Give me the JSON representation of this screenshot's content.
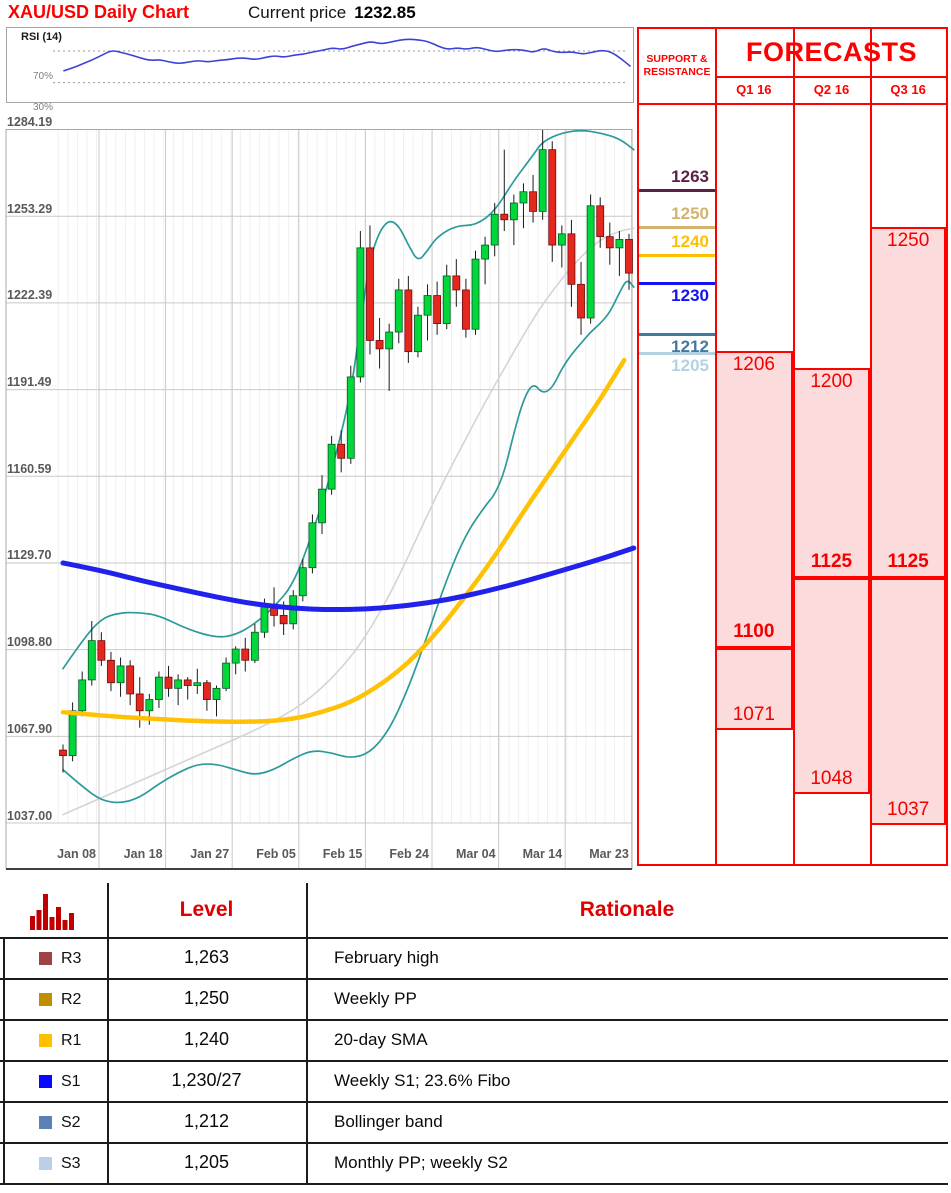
{
  "header": {
    "title": "XAU/USD Daily Chart",
    "price_label": "Current price",
    "price_value": "1232.85"
  },
  "chart_data": {
    "type": "candlestick",
    "title": "XAU/USD Daily Chart",
    "up_color": "#00D73A",
    "down_color": "#E4281E",
    "grid": true,
    "y_axis": {
      "top": 1284.19,
      "bottom": 1037.0,
      "labels": [
        "1284.19",
        "1253.29",
        "1222.39",
        "1191.49",
        "1160.59",
        "1129.70",
        "1098.80",
        "1067.90",
        "1037.00"
      ]
    },
    "x_axis": {
      "labels": [
        "Jan 08",
        "Jan 18",
        "Jan 27",
        "Feb 05",
        "Feb 15",
        "Feb 24",
        "Mar 04",
        "Mar 14",
        "Mar 23"
      ]
    },
    "candles": [
      [
        1063,
        1065,
        1055,
        1061
      ],
      [
        1061,
        1080,
        1059,
        1077
      ],
      [
        1077,
        1091,
        1075,
        1088
      ],
      [
        1088,
        1109,
        1086,
        1102
      ],
      [
        1102,
        1105,
        1093,
        1095
      ],
      [
        1095,
        1098,
        1084,
        1087
      ],
      [
        1087,
        1096,
        1082,
        1093
      ],
      [
        1093,
        1095,
        1079,
        1083
      ],
      [
        1083,
        1089,
        1071,
        1077
      ],
      [
        1077,
        1083,
        1072,
        1081
      ],
      [
        1081,
        1091,
        1078,
        1089
      ],
      [
        1089,
        1093,
        1082,
        1085
      ],
      [
        1085,
        1090,
        1079,
        1088
      ],
      [
        1088,
        1089,
        1081,
        1086
      ],
      [
        1086,
        1092,
        1083,
        1087
      ],
      [
        1087,
        1088,
        1077,
        1081
      ],
      [
        1081,
        1086,
        1075,
        1085
      ],
      [
        1085,
        1096,
        1084,
        1094
      ],
      [
        1094,
        1100,
        1090,
        1099
      ],
      [
        1099,
        1103,
        1091,
        1095
      ],
      [
        1095,
        1108,
        1094,
        1105
      ],
      [
        1105,
        1117,
        1103,
        1115
      ],
      [
        1115,
        1121,
        1107,
        1111
      ],
      [
        1111,
        1116,
        1104,
        1108
      ],
      [
        1108,
        1120,
        1106,
        1118
      ],
      [
        1118,
        1131,
        1116,
        1128
      ],
      [
        1128,
        1147,
        1126,
        1144
      ],
      [
        1144,
        1161,
        1140,
        1156
      ],
      [
        1156,
        1175,
        1154,
        1172
      ],
      [
        1172,
        1177,
        1162,
        1167
      ],
      [
        1167,
        1200,
        1165,
        1196
      ],
      [
        1196,
        1248,
        1194,
        1242
      ],
      [
        1242,
        1250,
        1204,
        1209
      ],
      [
        1209,
        1217,
        1199,
        1206
      ],
      [
        1206,
        1215,
        1191,
        1212
      ],
      [
        1212,
        1231,
        1208,
        1227
      ],
      [
        1227,
        1232,
        1201,
        1205
      ],
      [
        1205,
        1221,
        1203,
        1218
      ],
      [
        1218,
        1229,
        1209,
        1225
      ],
      [
        1225,
        1230,
        1211,
        1215
      ],
      [
        1215,
        1236,
        1213,
        1232
      ],
      [
        1232,
        1238,
        1221,
        1227
      ],
      [
        1227,
        1231,
        1210,
        1213
      ],
      [
        1213,
        1241,
        1211,
        1238
      ],
      [
        1238,
        1246,
        1229,
        1243
      ],
      [
        1243,
        1258,
        1239,
        1254
      ],
      [
        1254,
        1277,
        1248,
        1252
      ],
      [
        1252,
        1261,
        1243,
        1258
      ],
      [
        1258,
        1265,
        1249,
        1262
      ],
      [
        1262,
        1268,
        1251,
        1255
      ],
      [
        1255,
        1284,
        1252,
        1277
      ],
      [
        1277,
        1280,
        1237,
        1243
      ],
      [
        1243,
        1250,
        1235,
        1247
      ],
      [
        1247,
        1252,
        1221,
        1229
      ],
      [
        1229,
        1237,
        1211,
        1217
      ],
      [
        1217,
        1261,
        1215,
        1257
      ],
      [
        1257,
        1260,
        1242,
        1246
      ],
      [
        1246,
        1251,
        1236,
        1242
      ],
      [
        1242,
        1248,
        1232,
        1245
      ],
      [
        1245,
        1247,
        1227,
        1233
      ]
    ],
    "overlays": [
      {
        "name": "sma-short-gray",
        "color": "#d4d4d4",
        "width": 1.6,
        "points": [
          [
            0,
            1040
          ],
          [
            4,
            1046
          ],
          [
            8,
            1052
          ],
          [
            12,
            1058
          ],
          [
            16,
            1064
          ],
          [
            20,
            1070
          ],
          [
            24,
            1077
          ],
          [
            27,
            1085
          ],
          [
            30,
            1096
          ],
          [
            32,
            1106
          ],
          [
            34,
            1118
          ],
          [
            36,
            1132
          ],
          [
            38,
            1147
          ],
          [
            40,
            1161
          ],
          [
            42,
            1174
          ],
          [
            44,
            1187
          ],
          [
            46,
            1199
          ],
          [
            48,
            1211
          ],
          [
            50,
            1222
          ],
          [
            52,
            1231
          ],
          [
            54,
            1239
          ],
          [
            56,
            1245
          ],
          [
            58,
            1248
          ],
          [
            59.5,
            1249
          ]
        ]
      },
      {
        "name": "bollinger-upper",
        "color": "#2D9A9A",
        "width": 1.7,
        "points": [
          [
            0,
            1092
          ],
          [
            2,
            1102
          ],
          [
            4,
            1110
          ],
          [
            6,
            1112
          ],
          [
            8,
            1112
          ],
          [
            10,
            1111
          ],
          [
            13,
            1106
          ],
          [
            16,
            1103
          ],
          [
            18,
            1104
          ],
          [
            20,
            1108
          ],
          [
            22,
            1114
          ],
          [
            24,
            1122
          ],
          [
            26,
            1140
          ],
          [
            28,
            1162
          ],
          [
            30,
            1190
          ],
          [
            31,
            1215
          ],
          [
            32,
            1238
          ],
          [
            33,
            1248
          ],
          [
            34,
            1252
          ],
          [
            35,
            1250
          ],
          [
            36,
            1243
          ],
          [
            37,
            1237
          ],
          [
            38,
            1241
          ],
          [
            39,
            1246
          ],
          [
            41,
            1250
          ],
          [
            43,
            1250
          ],
          [
            45,
            1255
          ],
          [
            47,
            1266
          ],
          [
            49,
            1275
          ],
          [
            50,
            1280
          ],
          [
            52,
            1283
          ],
          [
            54,
            1284
          ],
          [
            56,
            1283
          ],
          [
            58,
            1281
          ],
          [
            59.5,
            1277
          ]
        ]
      },
      {
        "name": "bollinger-lower",
        "color": "#2D9A9A",
        "width": 1.7,
        "points": [
          [
            0,
            1056
          ],
          [
            2,
            1050
          ],
          [
            4,
            1045
          ],
          [
            6,
            1044
          ],
          [
            8,
            1046
          ],
          [
            10,
            1051
          ],
          [
            12,
            1055
          ],
          [
            14,
            1058
          ],
          [
            16,
            1058
          ],
          [
            18,
            1056
          ],
          [
            20,
            1054
          ],
          [
            22,
            1056
          ],
          [
            24,
            1060
          ],
          [
            26,
            1063
          ],
          [
            28,
            1062
          ],
          [
            30,
            1060
          ],
          [
            32,
            1062
          ],
          [
            34,
            1070
          ],
          [
            36,
            1085
          ],
          [
            38,
            1104
          ],
          [
            40,
            1124
          ],
          [
            42,
            1140
          ],
          [
            44,
            1150
          ],
          [
            45,
            1154
          ],
          [
            46,
            1162
          ],
          [
            47,
            1176
          ],
          [
            48,
            1188
          ],
          [
            49,
            1194
          ],
          [
            50,
            1190
          ],
          [
            51,
            1192
          ],
          [
            52,
            1199
          ],
          [
            53,
            1204
          ],
          [
            54,
            1208
          ],
          [
            55,
            1212
          ],
          [
            56,
            1215
          ],
          [
            57,
            1219
          ],
          [
            58,
            1226
          ],
          [
            58.8,
            1231
          ],
          [
            59.5,
            1228
          ]
        ]
      },
      {
        "name": "sma-gold",
        "color": "#FFC104",
        "width": 4.5,
        "points": [
          [
            0,
            1076.5
          ],
          [
            5,
            1075
          ],
          [
            10,
            1074
          ],
          [
            15,
            1073.2
          ],
          [
            20,
            1073
          ],
          [
            24,
            1074
          ],
          [
            27,
            1076.5
          ],
          [
            30,
            1080
          ],
          [
            33,
            1086
          ],
          [
            36,
            1094
          ],
          [
            39,
            1105
          ],
          [
            42,
            1118
          ],
          [
            45,
            1132
          ],
          [
            48,
            1148
          ],
          [
            51,
            1163
          ],
          [
            54,
            1178
          ],
          [
            56,
            1188
          ],
          [
            58.5,
            1202
          ]
        ]
      },
      {
        "name": "sma-blue",
        "color": "#2121EB",
        "width": 5,
        "points": [
          [
            0,
            1129.7
          ],
          [
            4,
            1127
          ],
          [
            8,
            1123.5
          ],
          [
            12,
            1120.5
          ],
          [
            16,
            1117.5
          ],
          [
            20,
            1115
          ],
          [
            24,
            1113.5
          ],
          [
            28,
            1113
          ],
          [
            32,
            1113.3
          ],
          [
            36,
            1114.5
          ],
          [
            40,
            1116.5
          ],
          [
            44,
            1119.5
          ],
          [
            48,
            1123
          ],
          [
            52,
            1127
          ],
          [
            56,
            1131
          ],
          [
            59.5,
            1135
          ]
        ]
      }
    ],
    "rsi": {
      "label": "RSI (14)",
      "upper_label": "70%",
      "lower_label": "30%",
      "color": "#3B43D6",
      "values": [
        45,
        49,
        54,
        59,
        65,
        71,
        68,
        65,
        61,
        58,
        59,
        56,
        54,
        56,
        58,
        56,
        58,
        59,
        61,
        61,
        59,
        62,
        64,
        62,
        65,
        66,
        69,
        71,
        74,
        72,
        76,
        79,
        82,
        79,
        81,
        84,
        85,
        84,
        82,
        76,
        72,
        74,
        72,
        75,
        72,
        69,
        71,
        72,
        71,
        68,
        74,
        69,
        68,
        69,
        66,
        68,
        71,
        69,
        61,
        51
      ]
    }
  },
  "sr_panel": {
    "header": "SUPPORT & RESISTANCE",
    "levels": [
      {
        "value": "1263",
        "price": 1263,
        "color": "#5B2144",
        "side": "above"
      },
      {
        "value": "1250",
        "price": 1250,
        "color": "#D2B46C",
        "side": "above"
      },
      {
        "value": "1240",
        "price": 1240,
        "color": "#FFC000",
        "side": "above"
      },
      {
        "value": "1230",
        "price": 1230,
        "color": "#1414F0",
        "side": "below"
      },
      {
        "value": "1212",
        "price": 1212,
        "color": "#41799F",
        "side": "below"
      },
      {
        "value": "1205",
        "price": 1205,
        "color": "#B5D2E3",
        "side": "below"
      }
    ]
  },
  "forecasts": {
    "title": "FORECASTS",
    "fill": "#FBDBDB",
    "border": "#FE0000",
    "columns": [
      {
        "quarter": "Q1 16",
        "high": "1206",
        "high_price": 1206,
        "low": "1071",
        "low_price": 1071,
        "target": "1100",
        "target_price": 1100
      },
      {
        "quarter": "Q2 16",
        "high": "1200",
        "high_price": 1200,
        "low": "1048",
        "low_price": 1048,
        "target": "1125",
        "target_price": 1125
      },
      {
        "quarter": "Q3 16",
        "high": "1250",
        "high_price": 1250,
        "low": "1037",
        "low_price": 1037,
        "target": "1125",
        "target_price": 1125
      }
    ]
  },
  "table": {
    "level_header": "Level",
    "rationale_header": "Rationale",
    "rows": [
      {
        "key": "R3",
        "color": "#9E4244",
        "level": "1,263",
        "rationale": "February high"
      },
      {
        "key": "R2",
        "color": "#BF8F00",
        "level": "1,250",
        "rationale": "Weekly PP"
      },
      {
        "key": "R1",
        "color": "#FFC000",
        "level": "1,240",
        "rationale": "20-day SMA"
      },
      {
        "key": "S1",
        "color": "#0909FF",
        "level": "1,230/27",
        "rationale": "Weekly S1; 23.6% Fibo"
      },
      {
        "key": "S2",
        "color": "#5E81B5",
        "level": "1,212",
        "rationale": "Bollinger band"
      },
      {
        "key": "S3",
        "color": "#BCCFE8",
        "level": "1,205",
        "rationale": "Monthly PP; weekly S2"
      }
    ]
  }
}
